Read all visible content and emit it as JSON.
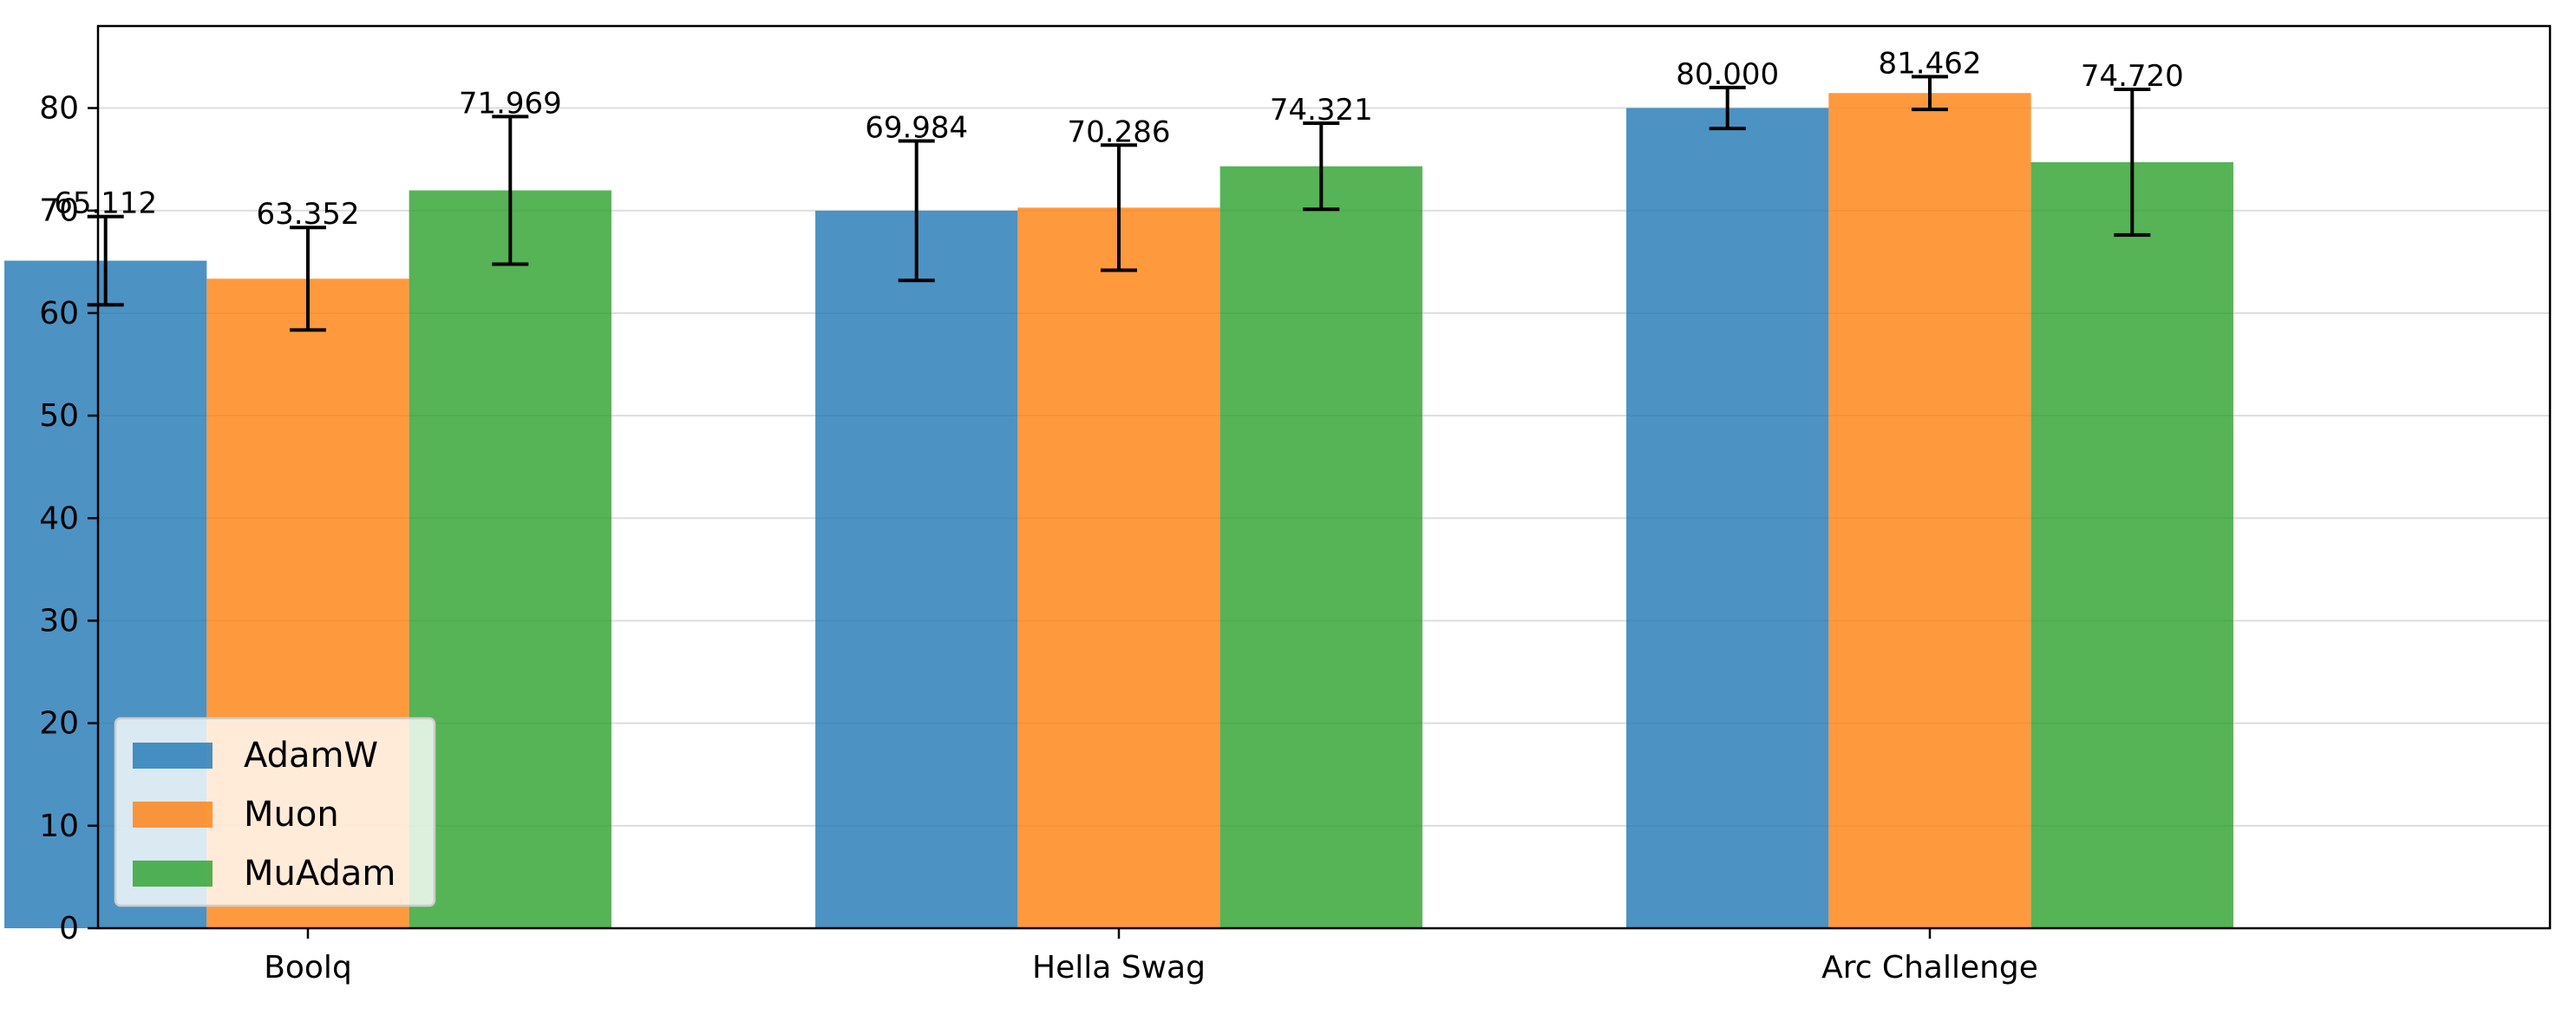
{
  "chart_data": {
    "type": "bar",
    "title": "",
    "xlabel": "",
    "ylabel": "",
    "categories": [
      "Boolq",
      "Hella Swag",
      "Arc Challenge"
    ],
    "ylim": [
      0,
      88
    ],
    "yticks": [
      0,
      10,
      20,
      30,
      40,
      50,
      60,
      70,
      80
    ],
    "grid": "horizontal",
    "legend_position": "lower-left",
    "series": [
      {
        "name": "AdamW",
        "color": "#1f77b4",
        "values": [
          65.112,
          69.984,
          80.0
        ],
        "errors": [
          4.3,
          6.8,
          2.0
        ]
      },
      {
        "name": "Muon",
        "color": "#ff7f0e",
        "values": [
          63.352,
          70.286,
          81.462
        ],
        "errors": [
          5.0,
          6.1,
          1.6
        ]
      },
      {
        "name": "MuAdam",
        "color": "#2ca02c",
        "values": [
          71.969,
          74.321,
          74.72
        ],
        "errors": [
          7.2,
          4.2,
          7.1
        ]
      }
    ],
    "data_labels": [
      [
        "65.112",
        "69.984",
        "80.000"
      ],
      [
        "63.352",
        "70.286",
        "81.462"
      ],
      [
        "71.969",
        "74.321",
        "74.720"
      ]
    ]
  }
}
